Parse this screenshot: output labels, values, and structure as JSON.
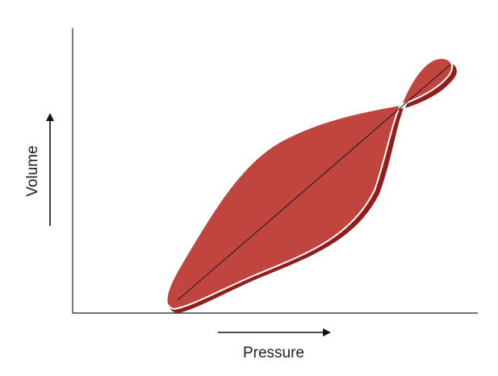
{
  "axes": {
    "y_label": "Volume",
    "x_label": "Pressure"
  }
}
